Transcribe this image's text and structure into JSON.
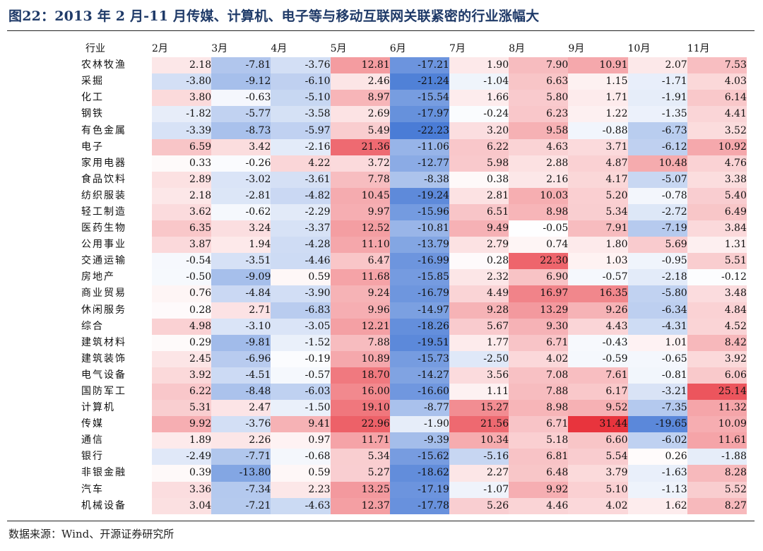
{
  "title": "图22：2013 年 2 月-11 月传媒、计算机、电子等与移动互联网关联紧密的行业涨幅大",
  "source": "数据来源：Wind、开源证券研究所",
  "chart_data": {
    "type": "heatmap",
    "row_header": "行业",
    "columns": [
      "2月",
      "3月",
      "4月",
      "5月",
      "6月",
      "7月",
      "8月",
      "9月",
      "10月",
      "11月"
    ],
    "rows": [
      "农林牧渔",
      "采掘",
      "化工",
      "钢铁",
      "有色金属",
      "电子",
      "家用电器",
      "食品饮料",
      "纺织服装",
      "轻工制造",
      "医药生物",
      "公用事业",
      "交通运输",
      "房地产",
      "商业贸易",
      "休闲服务",
      "综合",
      "建筑材料",
      "建筑装饰",
      "电气设备",
      "国防军工",
      "计算机",
      "传媒",
      "通信",
      "银行",
      "非银金融",
      "汽车",
      "机械设备"
    ],
    "values": [
      [
        "2.18",
        "-7.81",
        "-3.76",
        "12.81",
        "-17.21",
        "1.90",
        "7.90",
        "10.91",
        "2.07",
        "7.53"
      ],
      [
        "-3.80",
        "-9.12",
        "-6.10",
        "2.46",
        "-21.24",
        "-1.04",
        "6.63",
        "1.15",
        "-1.71",
        "4.03"
      ],
      [
        "3.80",
        "-0.63",
        "-5.10",
        "8.97",
        "-15.54",
        "1.66",
        "5.80",
        "1.71",
        "-1.91",
        "6.14"
      ],
      [
        "-1.82",
        "-5.77",
        "-3.58",
        "2.69",
        "-17.97",
        "-0.24",
        "6.23",
        "1.22",
        "-1.35",
        "4.41"
      ],
      [
        "-3.39",
        "-8.73",
        "-5.97",
        "5.49",
        "-22.23",
        "3.20",
        "9.58",
        "-0.88",
        "-6.73",
        "3.52"
      ],
      [
        "6.59",
        "3.42",
        "-2.16",
        "21.36",
        "-11.06",
        "6.22",
        "4.63",
        "3.71",
        "-6.12",
        "10.92"
      ],
      [
        "0.33",
        "-0.26",
        "4.22",
        "3.72",
        "-12.77",
        "5.98",
        "2.88",
        "4.87",
        "10.48",
        "4.76"
      ],
      [
        "2.89",
        "-3.02",
        "-3.61",
        "7.78",
        "-8.38",
        "0.38",
        "2.16",
        "4.17",
        "-5.07",
        "3.38"
      ],
      [
        "2.18",
        "-2.81",
        "-4.82",
        "10.45",
        "-19.24",
        "2.81",
        "10.03",
        "5.20",
        "-0.78",
        "5.40"
      ],
      [
        "3.62",
        "-0.62",
        "-2.29",
        "9.97",
        "-15.96",
        "6.51",
        "8.98",
        "5.34",
        "-2.72",
        "6.49"
      ],
      [
        "6.35",
        "3.24",
        "-3.37",
        "12.52",
        "-10.81",
        "9.49",
        "-0.05",
        "7.91",
        "-7.19",
        "3.84"
      ],
      [
        "3.87",
        "1.94",
        "-4.28",
        "11.10",
        "-13.79",
        "2.79",
        "0.74",
        "1.80",
        "5.69",
        "1.31"
      ],
      [
        "-0.54",
        "-3.51",
        "-4.46",
        "6.47",
        "-16.99",
        "0.28",
        "22.30",
        "1.03",
        "-0.95",
        "5.51"
      ],
      [
        "-0.50",
        "-9.09",
        "0.59",
        "11.68",
        "-15.85",
        "2.32",
        "6.90",
        "-0.57",
        "-2.18",
        "-0.12"
      ],
      [
        "0.76",
        "-4.84",
        "-3.90",
        "9.24",
        "-16.79",
        "4.49",
        "16.97",
        "16.35",
        "-5.80",
        "3.48"
      ],
      [
        "0.28",
        "2.71",
        "-6.83",
        "9.96",
        "-14.97",
        "9.28",
        "13.29",
        "9.26",
        "-6.34",
        "4.84"
      ],
      [
        "4.98",
        "-3.10",
        "-3.05",
        "12.21",
        "-18.26",
        "5.67",
        "9.30",
        "4.43",
        "-4.31",
        "4.52"
      ],
      [
        "0.29",
        "-9.81",
        "-1.52",
        "7.88",
        "-19.51",
        "1.77",
        "6.71",
        "-0.43",
        "1.01",
        "8.42"
      ],
      [
        "2.45",
        "-6.96",
        "-0.19",
        "10.89",
        "-15.73",
        "-2.50",
        "4.02",
        "-0.59",
        "-0.65",
        "3.92"
      ],
      [
        "3.92",
        "-4.51",
        "-0.57",
        "18.70",
        "-14.27",
        "3.56",
        "7.08",
        "7.61",
        "-0.81",
        "6.06"
      ],
      [
        "6.22",
        "-8.48",
        "-6.03",
        "16.00",
        "-16.60",
        "1.11",
        "7.88",
        "6.17",
        "-3.21",
        "25.14"
      ],
      [
        "5.31",
        "2.47",
        "-1.50",
        "19.10",
        "-8.77",
        "15.27",
        "8.98",
        "9.52",
        "-7.35",
        "11.32"
      ],
      [
        "9.92",
        "-3.76",
        "9.41",
        "22.96",
        "-1.90",
        "21.56",
        "6.71",
        "31.44",
        "-19.65",
        "10.09"
      ],
      [
        "1.89",
        "2.26",
        "0.97",
        "11.71",
        "-9.39",
        "10.34",
        "5.18",
        "6.60",
        "-6.02",
        "11.61"
      ],
      [
        "-2.49",
        "-7.71",
        "-0.68",
        "5.34",
        "-15.62",
        "-5.16",
        "6.81",
        "5.54",
        "0.26",
        "-1.88"
      ],
      [
        "0.39",
        "-13.80",
        "0.59",
        "5.27",
        "-18.62",
        "2.27",
        "6.48",
        "3.79",
        "-1.63",
        "8.28"
      ],
      [
        "3.36",
        "-7.34",
        "2.23",
        "13.25",
        "-17.19",
        "-1.07",
        "9.92",
        "5.10",
        "-1.13",
        "5.52"
      ],
      [
        "3.04",
        "-7.21",
        "-4.63",
        "12.37",
        "-17.78",
        "5.26",
        "4.46",
        "4.02",
        "1.62",
        "8.27"
      ]
    ],
    "colors": {
      "positive": "#e8343d",
      "negative": "#4a7cd6",
      "neutral": "#ffffff"
    }
  }
}
